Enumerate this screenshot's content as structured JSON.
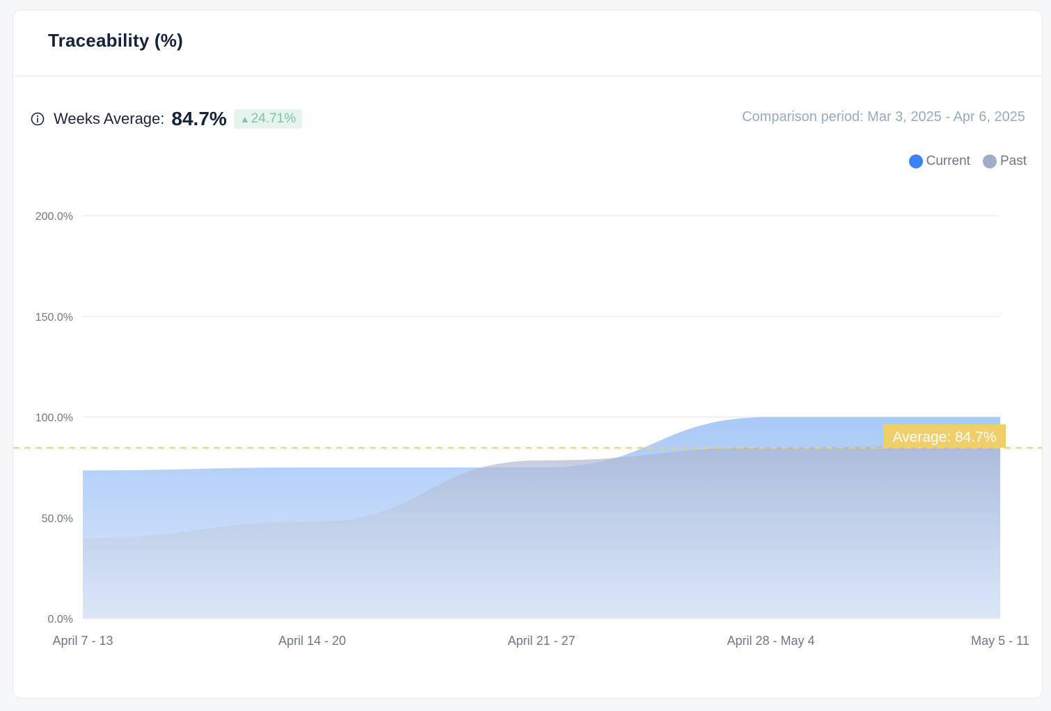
{
  "card": {
    "title": "Traceability (%)"
  },
  "summary": {
    "info_icon": "info-circle-icon",
    "label": "Weeks Average:",
    "value": "84.7%",
    "delta": "24.71%",
    "delta_icon": "triangle-up-icon",
    "delta_color": "#7fc3a5",
    "comparison": "Comparison period: Mar 3, 2025 - Apr 6, 2025"
  },
  "legend": [
    {
      "name": "Current",
      "color": "#3b82f6"
    },
    {
      "name": "Past",
      "color": "#9eadc9"
    }
  ],
  "average_line": {
    "label": "Average: 84.7%",
    "value": 84.7,
    "color": "#f0cf6a"
  },
  "chart_data": {
    "type": "area",
    "categories": [
      "April 7 - 13",
      "April 14 - 20",
      "April 21 - 27",
      "April 28 - May 4",
      "May 5 - 11"
    ],
    "series": [
      {
        "name": "Current",
        "values": [
          73.5,
          75.0,
          75.0,
          100.0,
          100.0
        ],
        "color": "#a8c8f8"
      },
      {
        "name": "Past",
        "values": [
          40.0,
          48.0,
          78.5,
          85.0,
          86.0
        ],
        "color": "#b9c3d9"
      }
    ],
    "ylim": [
      0,
      200
    ],
    "yticks": [
      0,
      50,
      100,
      150,
      200
    ],
    "ytick_labels": [
      "0.0%",
      "50.0%",
      "100.0%",
      "150.0%",
      "200.0%"
    ],
    "grid": true,
    "legend": "top-right"
  }
}
